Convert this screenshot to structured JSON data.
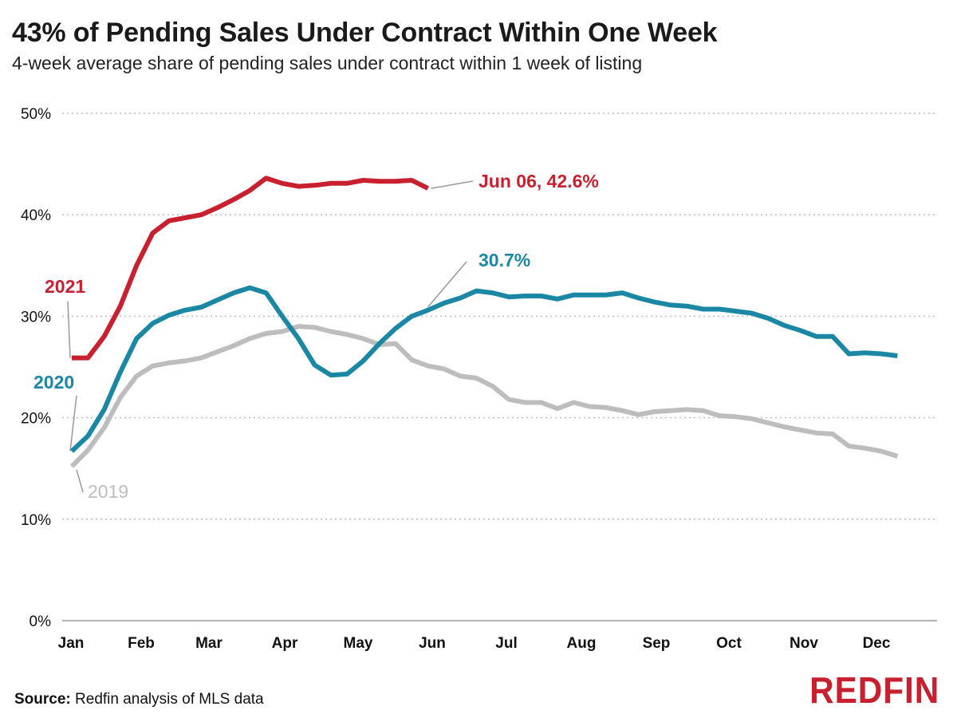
{
  "header": {
    "title": "43% of Pending Sales Under Contract Within One Week",
    "subtitle": "4-week average share of pending sales under contract within 1 week of listing"
  },
  "footer": {
    "source_label": "Source:",
    "source_text": "Redfin analysis of MLS data",
    "logo": "REDFIN"
  },
  "colors": {
    "2021": "#c8202f",
    "2020": "#1a88a5",
    "2019": "#bdbdbd",
    "grid": "#bbbbbb",
    "logo": "#c8202f"
  },
  "chart_data": {
    "type": "line",
    "title": "43% of Pending Sales Under Contract Within One Week",
    "subtitle": "4-week average share of pending sales under contract within 1 week of listing",
    "xlabel": "",
    "ylabel": "",
    "x_unit": "week of year",
    "x_tick_labels": [
      "Jan",
      "Feb",
      "Mar",
      "Apr",
      "May",
      "Jun",
      "Jul",
      "Aug",
      "Sep",
      "Oct",
      "Nov",
      "Dec"
    ],
    "y_tick_labels": [
      "0%",
      "10%",
      "20%",
      "30%",
      "40%",
      "50%"
    ],
    "ylim": [
      0,
      50
    ],
    "grid": true,
    "series": [
      {
        "name": "2021",
        "color": "#c8202f",
        "values": [
          25.9,
          25.9,
          28.0,
          31.0,
          35.0,
          38.2,
          39.4,
          39.7,
          40.0,
          40.7,
          41.5,
          42.4,
          43.6,
          43.1,
          42.8,
          42.9,
          43.1,
          43.1,
          43.4,
          43.3,
          43.3,
          43.4,
          42.6
        ]
      },
      {
        "name": "2020",
        "color": "#1a88a5",
        "values": [
          16.7,
          18.2,
          20.8,
          24.5,
          27.8,
          29.3,
          30.1,
          30.6,
          30.9,
          31.6,
          32.3,
          32.8,
          32.3,
          30.0,
          27.8,
          25.2,
          24.2,
          24.3,
          25.6,
          27.3,
          28.8,
          30.0,
          30.6,
          31.3,
          31.8,
          32.5,
          32.3,
          31.9,
          32.0,
          32.0,
          31.7,
          32.1,
          32.1,
          32.1,
          32.3,
          31.8,
          31.4,
          31.1,
          31.0,
          30.7,
          30.7,
          30.5,
          30.3,
          29.8,
          29.1,
          28.6,
          28.0,
          28.0,
          26.3,
          26.4,
          26.3,
          26.1
        ]
      },
      {
        "name": "2019",
        "color": "#bdbdbd",
        "values": [
          15.2,
          16.8,
          19.0,
          22.0,
          24.1,
          25.1,
          25.4,
          25.6,
          25.9,
          26.5,
          27.1,
          27.8,
          28.3,
          28.5,
          29.0,
          28.9,
          28.5,
          28.2,
          27.8,
          27.2,
          27.3,
          25.7,
          25.1,
          24.8,
          24.1,
          23.9,
          23.1,
          21.8,
          21.5,
          21.5,
          20.9,
          21.5,
          21.1,
          21.0,
          20.7,
          20.3,
          20.6,
          20.7,
          20.8,
          20.7,
          20.2,
          20.1,
          19.9,
          19.5,
          19.1,
          18.8,
          18.5,
          18.4,
          17.2,
          17.0,
          16.7,
          16.2
        ]
      }
    ],
    "annotations": [
      {
        "text": "Jun 06, 42.6%",
        "series": "2021"
      },
      {
        "text": "2021",
        "series": "2021"
      },
      {
        "text": "30.7%",
        "series": "2020"
      },
      {
        "text": "2020",
        "series": "2020"
      },
      {
        "text": "2019",
        "series": "2019"
      }
    ]
  }
}
